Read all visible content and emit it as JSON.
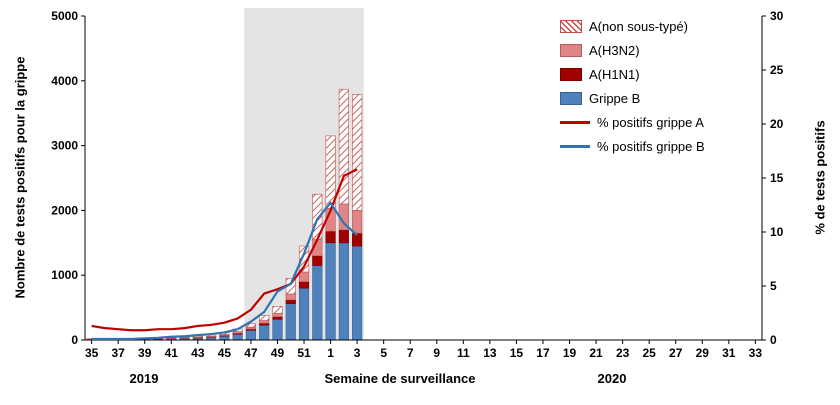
{
  "chart_data": {
    "type": "bar+line",
    "title": "",
    "xlabel": "Semaine de surveillance",
    "ylabel_left": "Nombre de tests positifs pour la grippe",
    "ylabel_right": "% de tests positifs",
    "ylim_left": [
      0,
      5000
    ],
    "yticks_left": [
      0,
      1000,
      2000,
      3000,
      4000,
      5000
    ],
    "ylim_right": [
      0,
      30
    ],
    "yticks_right": [
      0,
      5,
      10,
      15,
      20,
      25,
      30
    ],
    "weeks": [
      35,
      36,
      37,
      38,
      39,
      40,
      41,
      42,
      43,
      44,
      45,
      46,
      47,
      48,
      49,
      50,
      51,
      52,
      1,
      2,
      3,
      4,
      5,
      6,
      7,
      8,
      9,
      10,
      11,
      12,
      13,
      14,
      15,
      16,
      17,
      18,
      19,
      20,
      21,
      22,
      23,
      24,
      25,
      26,
      27,
      28,
      29,
      30,
      31,
      32,
      33
    ],
    "year_labels": [
      {
        "text": "2019",
        "week": 39
      },
      {
        "text": "2020",
        "week": 22
      }
    ],
    "shaded_region": {
      "from_week": 47,
      "to_week": 3,
      "color": "#e4e4e4"
    },
    "hatch_color": "#c0504d",
    "bar_series": [
      {
        "name": "Grippe B",
        "color": "#4f81bd",
        "border": "#38618f",
        "values": [
          10,
          8,
          8,
          10,
          12,
          15,
          20,
          25,
          30,
          40,
          60,
          90,
          150,
          230,
          320,
          560,
          800,
          1150,
          1500,
          1500,
          1450,
          null,
          null,
          null,
          null,
          null,
          null,
          null,
          null,
          null,
          null,
          null,
          null,
          null,
          null,
          null,
          null,
          null,
          null,
          null,
          null,
          null,
          null,
          null,
          null,
          null,
          null,
          null,
          null,
          null,
          null
        ]
      },
      {
        "name": "A(H1N1)",
        "color": "#a00000",
        "border": "#7a0000",
        "values": [
          2,
          1,
          1,
          2,
          2,
          3,
          3,
          4,
          5,
          6,
          10,
          15,
          20,
          30,
          40,
          60,
          100,
          150,
          180,
          200,
          200,
          null,
          null,
          null,
          null,
          null,
          null,
          null,
          null,
          null,
          null,
          null,
          null,
          null,
          null,
          null,
          null,
          null,
          null,
          null,
          null,
          null,
          null,
          null,
          null,
          null,
          null,
          null,
          null,
          null,
          null
        ]
      },
      {
        "name": "A(H3N2)",
        "color": "#e08585",
        "border": "#b85c5c",
        "values": [
          3,
          2,
          2,
          3,
          3,
          4,
          5,
          6,
          8,
          10,
          15,
          25,
          30,
          40,
          50,
          90,
          150,
          250,
          350,
          400,
          350,
          null,
          null,
          null,
          null,
          null,
          null,
          null,
          null,
          null,
          null,
          null,
          null,
          null,
          null,
          null,
          null,
          null,
          null,
          null,
          null,
          null,
          null,
          null,
          null,
          null,
          null,
          null,
          null,
          null,
          null
        ]
      },
      {
        "name": "A(non sous-typé)",
        "color": "hatch",
        "border": "#c0504d",
        "values": [
          5,
          4,
          4,
          5,
          6,
          8,
          10,
          12,
          15,
          20,
          30,
          40,
          50,
          80,
          110,
          240,
          400,
          700,
          1120,
          1770,
          1790,
          null,
          null,
          null,
          null,
          null,
          null,
          null,
          null,
          null,
          null,
          null,
          null,
          null,
          null,
          null,
          null,
          null,
          null,
          null,
          null,
          null,
          null,
          null,
          null,
          null,
          null,
          null,
          null,
          null,
          null
        ]
      }
    ],
    "line_series": [
      {
        "name": "% positifs grippe A",
        "color": "#c00000",
        "values": [
          1.3,
          1.1,
          1.0,
          0.9,
          0.9,
          1.0,
          1.0,
          1.1,
          1.3,
          1.4,
          1.6,
          2.0,
          2.8,
          4.3,
          4.7,
          5.2,
          6.8,
          9.3,
          12.0,
          15.2,
          15.8,
          null,
          null,
          null,
          null,
          null,
          null,
          null,
          null,
          null,
          null,
          null,
          null,
          null,
          null,
          null,
          null,
          null,
          null,
          null,
          null,
          null,
          null,
          null,
          null,
          null,
          null,
          null,
          null,
          null,
          null
        ]
      },
      {
        "name": "% positifs grippe B",
        "color": "#2e74b5",
        "values": [
          0.1,
          0.1,
          0.1,
          0.1,
          0.15,
          0.2,
          0.3,
          0.35,
          0.45,
          0.55,
          0.7,
          1.0,
          1.7,
          2.6,
          4.5,
          5.2,
          8.0,
          11.2,
          12.7,
          10.8,
          9.7,
          null,
          null,
          null,
          null,
          null,
          null,
          null,
          null,
          null,
          null,
          null,
          null,
          null,
          null,
          null,
          null,
          null,
          null,
          null,
          null,
          null,
          null,
          null,
          null,
          null,
          null,
          null,
          null,
          null,
          null
        ]
      }
    ],
    "legend": [
      {
        "label": "A(non sous-typé)",
        "type": "hatch",
        "color": "#c0504d",
        "border": "#c0504d",
        "icon": "hatched-swatch"
      },
      {
        "label": "A(H3N2)",
        "type": "fill",
        "color": "#e08585",
        "border": "#b85c5c",
        "icon": "pink-swatch"
      },
      {
        "label": "A(H1N1)",
        "type": "fill",
        "color": "#a00000",
        "border": "#7a0000",
        "icon": "darkred-swatch"
      },
      {
        "label": "Grippe B",
        "type": "fill",
        "color": "#4f81bd",
        "border": "#38618f",
        "icon": "blue-swatch"
      },
      {
        "label": "% positifs grippe A",
        "type": "line",
        "color": "#c00000",
        "icon": "red-line-swatch"
      },
      {
        "label": "% positifs grippe B",
        "type": "line",
        "color": "#2e74b5",
        "icon": "blue-line-swatch"
      }
    ]
  }
}
